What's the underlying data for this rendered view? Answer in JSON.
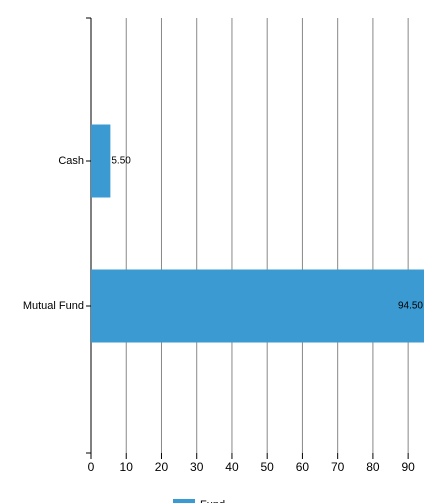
{
  "chart_data": {
    "type": "hbar",
    "categories": [
      "Cash",
      "Mutual Fund"
    ],
    "series": [
      {
        "name": "Fund",
        "color": "#3a9ad1",
        "values": [
          5.5,
          94.5
        ],
        "value_labels": [
          "5.50",
          "94.50"
        ]
      }
    ],
    "xlim": [
      0,
      94.5
    ],
    "xticks": [
      0,
      10,
      20,
      30,
      40,
      50,
      60,
      70,
      80,
      90
    ],
    "grid": true
  }
}
